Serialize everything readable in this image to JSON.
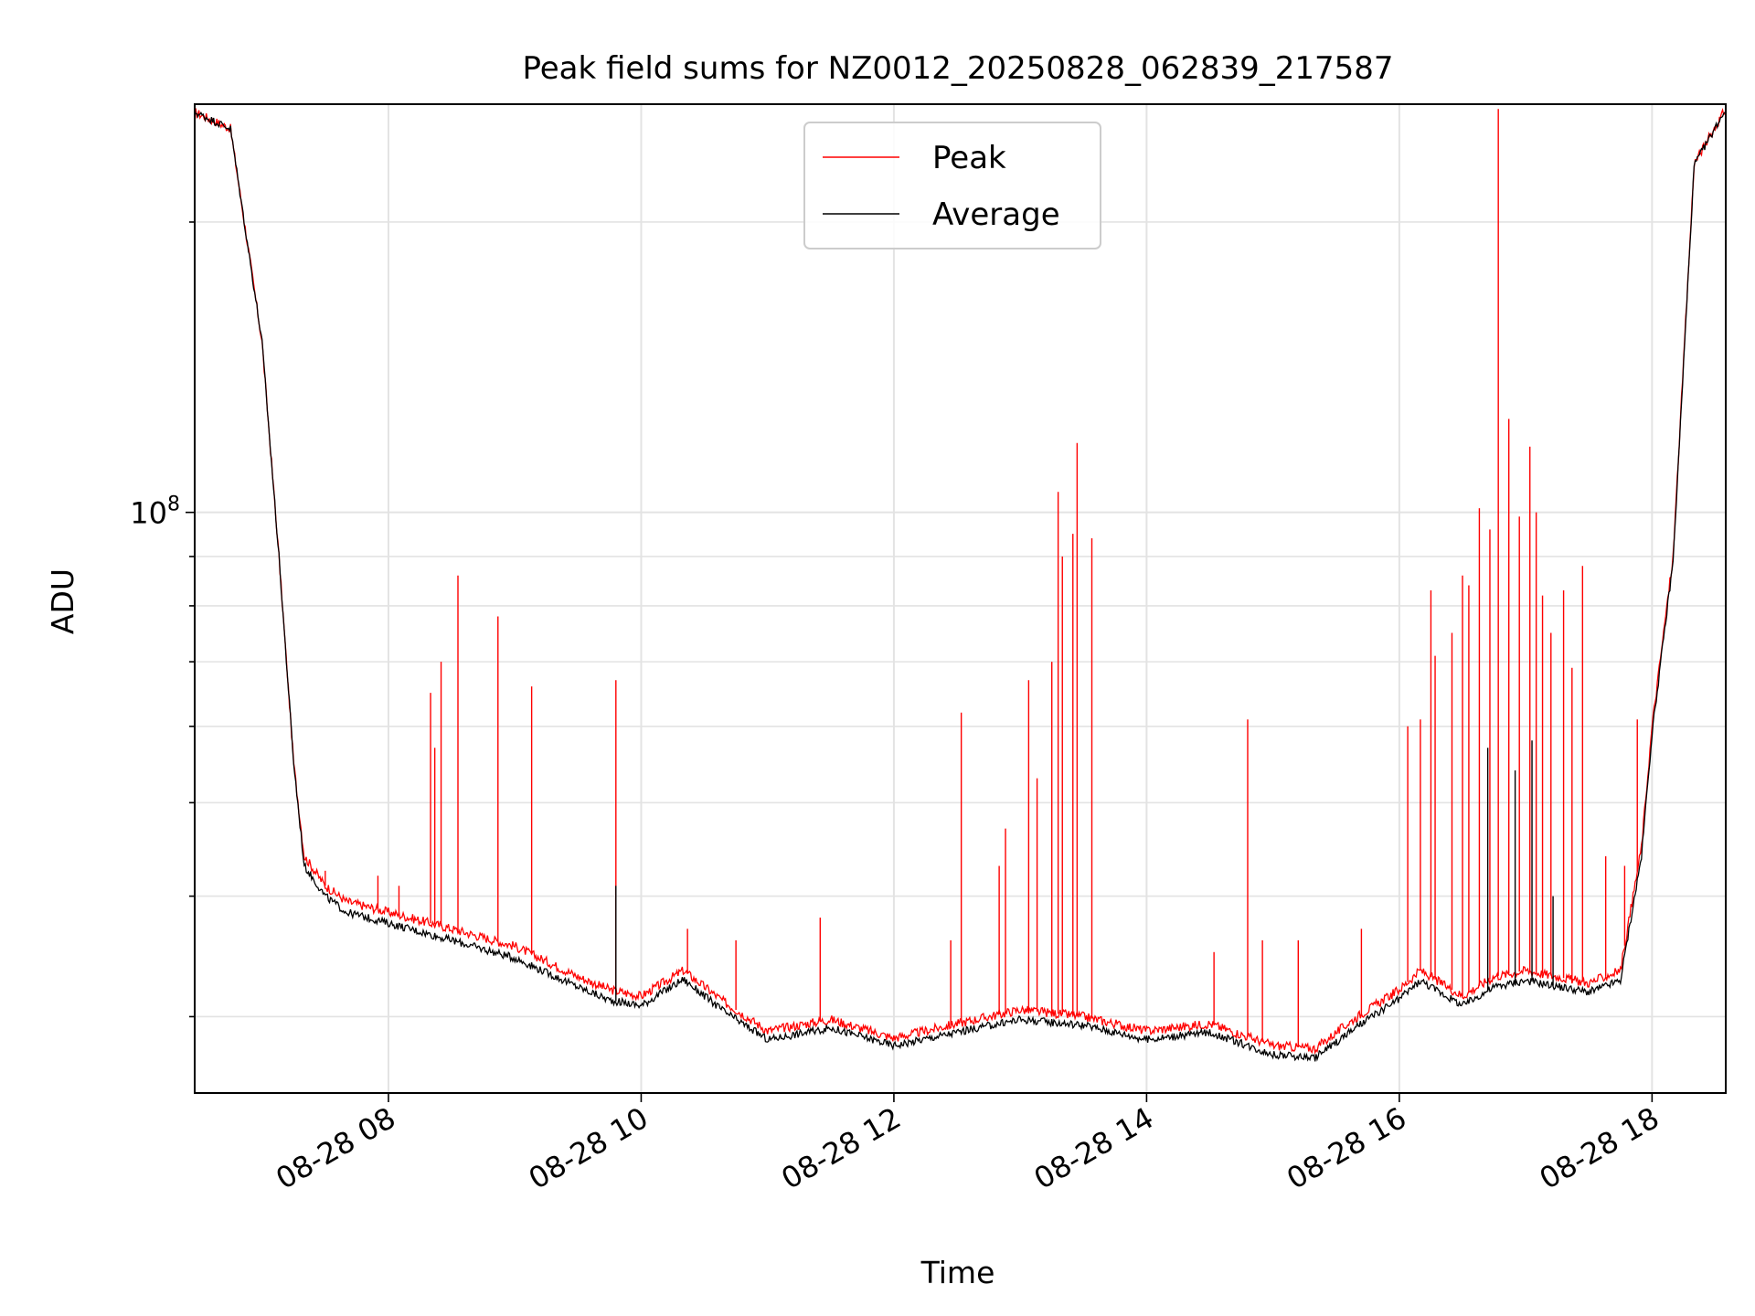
{
  "chart_data": {
    "type": "line",
    "title": "Peak field sums for NZ0012_20250828_062839_217587",
    "xlabel": "Time",
    "ylabel": "ADU",
    "y_scale": "log",
    "xlim": [
      "08-28 06:28",
      "08-28 18:35"
    ],
    "ylim": [
      25000000,
      265000000
    ],
    "x_ticks": [
      "08-28 08",
      "08-28 10",
      "08-28 12",
      "08-28 14",
      "08-28 16",
      "08-28 18"
    ],
    "y_tick_major_label": "10^8",
    "y_tick_major_base": "10",
    "y_tick_major_exp": "8",
    "grid": true,
    "legend_position": "top-center",
    "colors": {
      "Peak": "#ff0000",
      "Average": "#000000"
    },
    "series": [
      {
        "name": "Peak",
        "points": [
          [
            "08-28 06:28",
            260000000
          ],
          [
            "08-28 06:45",
            250000000
          ],
          [
            "08-28 07:00",
            150000000
          ],
          [
            "08-28 07:08",
            90000000
          ],
          [
            "08-28 07:15",
            55000000
          ],
          [
            "08-28 07:20",
            44000000
          ],
          [
            "08-28 07:30",
            41000000
          ],
          [
            "08-28 07:40",
            39500000
          ],
          [
            "08-28 08:00",
            38500000
          ],
          [
            "08-28 08:30",
            37000000
          ],
          [
            "08-28 09:00",
            35500000
          ],
          [
            "08-28 09:30",
            33000000
          ],
          [
            "08-28 09:45",
            32000000
          ],
          [
            "08-28 10:00",
            31500000
          ],
          [
            "08-28 10:20",
            33500000
          ],
          [
            "08-28 10:40",
            31000000
          ],
          [
            "08-28 11:00",
            29000000
          ],
          [
            "08-28 11:30",
            29800000
          ],
          [
            "08-28 12:00",
            28500000
          ],
          [
            "08-28 12:30",
            29500000
          ],
          [
            "08-28 13:00",
            30500000
          ],
          [
            "08-28 13:30",
            30000000
          ],
          [
            "08-28 14:00",
            29000000
          ],
          [
            "08-28 14:30",
            29500000
          ],
          [
            "08-28 15:00",
            28000000
          ],
          [
            "08-28 15:20",
            27800000
          ],
          [
            "08-28 15:40",
            30000000
          ],
          [
            "08-28 16:00",
            32000000
          ],
          [
            "08-28 16:10",
            33500000
          ],
          [
            "08-28 16:30",
            31500000
          ],
          [
            "08-28 16:45",
            33000000
          ],
          [
            "08-28 17:00",
            33500000
          ],
          [
            "08-28 17:30",
            32500000
          ],
          [
            "08-28 17:45",
            33500000
          ],
          [
            "08-28 17:55",
            45000000
          ],
          [
            "08-28 18:00",
            60000000
          ],
          [
            "08-28 18:10",
            90000000
          ],
          [
            "08-28 18:20",
            230000000
          ],
          [
            "08-28 18:35",
            262000000
          ]
        ],
        "spikes": [
          [
            "08-28 07:30",
            42500000
          ],
          [
            "08-28 07:55",
            42000000
          ],
          [
            "08-28 08:05",
            41000000
          ],
          [
            "08-28 08:20",
            65000000
          ],
          [
            "08-28 08:22",
            57000000
          ],
          [
            "08-28 08:25",
            70000000
          ],
          [
            "08-28 08:33",
            86000000
          ],
          [
            "08-28 08:52",
            78000000
          ],
          [
            "08-28 09:08",
            66000000
          ],
          [
            "08-28 09:48",
            67000000
          ],
          [
            "08-28 10:22",
            37000000
          ],
          [
            "08-28 10:45",
            36000000
          ],
          [
            "08-28 11:25",
            38000000
          ],
          [
            "08-28 12:27",
            36000000
          ],
          [
            "08-28 12:32",
            62000000
          ],
          [
            "08-28 12:50",
            43000000
          ],
          [
            "08-28 12:53",
            47000000
          ],
          [
            "08-28 13:04",
            67000000
          ],
          [
            "08-28 13:08",
            53000000
          ],
          [
            "08-28 13:15",
            70000000
          ],
          [
            "08-28 13:18",
            105000000
          ],
          [
            "08-28 13:20",
            90000000
          ],
          [
            "08-28 13:25",
            95000000
          ],
          [
            "08-28 13:27",
            118000000
          ],
          [
            "08-28 13:34",
            94000000
          ],
          [
            "08-28 14:32",
            35000000
          ],
          [
            "08-28 14:48",
            61000000
          ],
          [
            "08-28 14:55",
            36000000
          ],
          [
            "08-28 15:12",
            36000000
          ],
          [
            "08-28 15:42",
            37000000
          ],
          [
            "08-28 16:04",
            60000000
          ],
          [
            "08-28 16:10",
            61000000
          ],
          [
            "08-28 16:15",
            83000000
          ],
          [
            "08-28 16:17",
            71000000
          ],
          [
            "08-28 16:25",
            75000000
          ],
          [
            "08-28 16:30",
            86000000
          ],
          [
            "08-28 16:33",
            84000000
          ],
          [
            "08-28 16:38",
            101000000
          ],
          [
            "08-28 16:43",
            96000000
          ],
          [
            "08-28 16:47",
            262000000
          ],
          [
            "08-28 16:52",
            125000000
          ],
          [
            "08-28 16:57",
            99000000
          ],
          [
            "08-28 17:02",
            117000000
          ],
          [
            "08-28 17:05",
            100000000
          ],
          [
            "08-28 17:08",
            82000000
          ],
          [
            "08-28 17:12",
            75000000
          ],
          [
            "08-28 17:18",
            83000000
          ],
          [
            "08-28 17:22",
            69000000
          ],
          [
            "08-28 17:27",
            88000000
          ],
          [
            "08-28 17:38",
            44000000
          ],
          [
            "08-28 17:47",
            43000000
          ],
          [
            "08-28 17:53",
            61000000
          ]
        ]
      },
      {
        "name": "Average",
        "points": [
          [
            "08-28 06:28",
            260000000
          ],
          [
            "08-28 06:45",
            250000000
          ],
          [
            "08-28 07:00",
            150000000
          ],
          [
            "08-28 07:08",
            90000000
          ],
          [
            "08-28 07:15",
            55000000
          ],
          [
            "08-28 07:20",
            43000000
          ],
          [
            "08-28 07:30",
            40000000
          ],
          [
            "08-28 07:40",
            38500000
          ],
          [
            "08-28 08:00",
            37500000
          ],
          [
            "08-28 08:30",
            36000000
          ],
          [
            "08-28 09:00",
            34500000
          ],
          [
            "08-28 09:30",
            32200000
          ],
          [
            "08-28 09:45",
            31200000
          ],
          [
            "08-28 10:00",
            30800000
          ],
          [
            "08-28 10:20",
            32800000
          ],
          [
            "08-28 10:40",
            30300000
          ],
          [
            "08-28 11:00",
            28400000
          ],
          [
            "08-28 11:30",
            29200000
          ],
          [
            "08-28 12:00",
            28000000
          ],
          [
            "08-28 12:30",
            28900000
          ],
          [
            "08-28 13:00",
            29800000
          ],
          [
            "08-28 13:30",
            29400000
          ],
          [
            "08-28 14:00",
            28400000
          ],
          [
            "08-28 14:30",
            28900000
          ],
          [
            "08-28 15:00",
            27400000
          ],
          [
            "08-28 15:20",
            27200000
          ],
          [
            "08-28 15:40",
            29300000
          ],
          [
            "08-28 16:00",
            31300000
          ],
          [
            "08-28 16:10",
            32700000
          ],
          [
            "08-28 16:30",
            30800000
          ],
          [
            "08-28 16:45",
            32200000
          ],
          [
            "08-28 17:00",
            32700000
          ],
          [
            "08-28 17:30",
            31800000
          ],
          [
            "08-28 17:45",
            32700000
          ],
          [
            "08-28 17:55",
            44000000
          ],
          [
            "08-28 18:00",
            59000000
          ],
          [
            "08-28 18:10",
            89000000
          ],
          [
            "08-28 18:20",
            229000000
          ],
          [
            "08-28 18:35",
            262000000
          ]
        ],
        "spikes": [
          [
            "08-28 09:48",
            41000000
          ],
          [
            "08-28 16:42",
            57000000
          ],
          [
            "08-28 16:55",
            54000000
          ],
          [
            "08-28 17:03",
            58000000
          ],
          [
            "08-28 17:13",
            40000000
          ]
        ]
      }
    ]
  }
}
